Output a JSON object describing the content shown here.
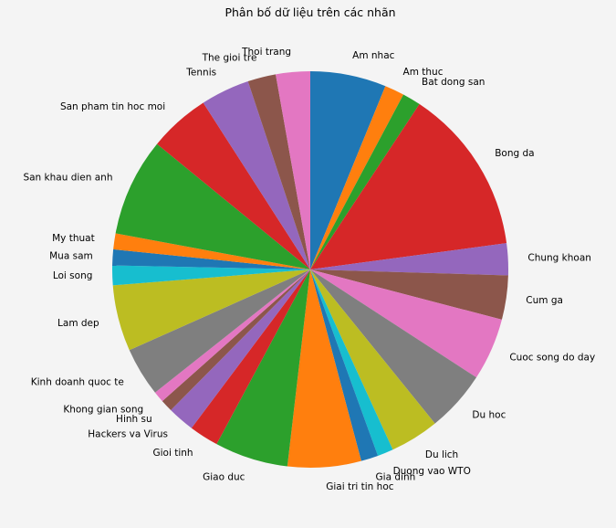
{
  "chart_data": {
    "type": "pie",
    "title": "Phân bố dữ liệu trên các nhãn",
    "start_angle_deg": 90,
    "direction": "clockwise",
    "legend": "none",
    "categories": [
      "Am nhac",
      "Am thuc",
      "Bat dong san",
      "Bong da",
      "Chung khoan",
      "Cum ga",
      "Cuoc song do day",
      "Du hoc",
      "Du lich",
      "Duong vao WTO",
      "Gia dinh",
      "Giai tri tin hoc",
      "Giao duc",
      "Gioi tinh",
      "Hackers va Virus",
      "Hinh su",
      "Khong gian song",
      "Kinh doanh quoc te",
      "Lam dep",
      "Loi song",
      "Mua sam",
      "My thuat",
      "San khau dien anh",
      "San pham tin hoc moi",
      "Tennis",
      "The gioi tre",
      "Thoi trang"
    ],
    "values": [
      6.2,
      1.6,
      1.5,
      13.6,
      2.6,
      3.6,
      5.1,
      5.0,
      4.0,
      1.3,
      1.4,
      6.0,
      6.0,
      2.4,
      2.2,
      1.0,
      0.9,
      4.0,
      5.4,
      1.6,
      1.3,
      1.3,
      8.0,
      5.0,
      4.0,
      2.3,
      2.8
    ],
    "colors": [
      "#1f77b4",
      "#ff7f0e",
      "#2ca02c",
      "#d62728",
      "#9467bd",
      "#8c564b",
      "#e377c2",
      "#7f7f7f",
      "#bcbd22",
      "#17becf",
      "#1f77b4",
      "#ff7f0e",
      "#2ca02c",
      "#d62728",
      "#9467bd",
      "#8c564b",
      "#e377c2",
      "#7f7f7f",
      "#bcbd22",
      "#17becf",
      "#1f77b4",
      "#ff7f0e",
      "#2ca02c",
      "#d62728",
      "#9467bd",
      "#8c564b",
      "#e377c2"
    ]
  }
}
